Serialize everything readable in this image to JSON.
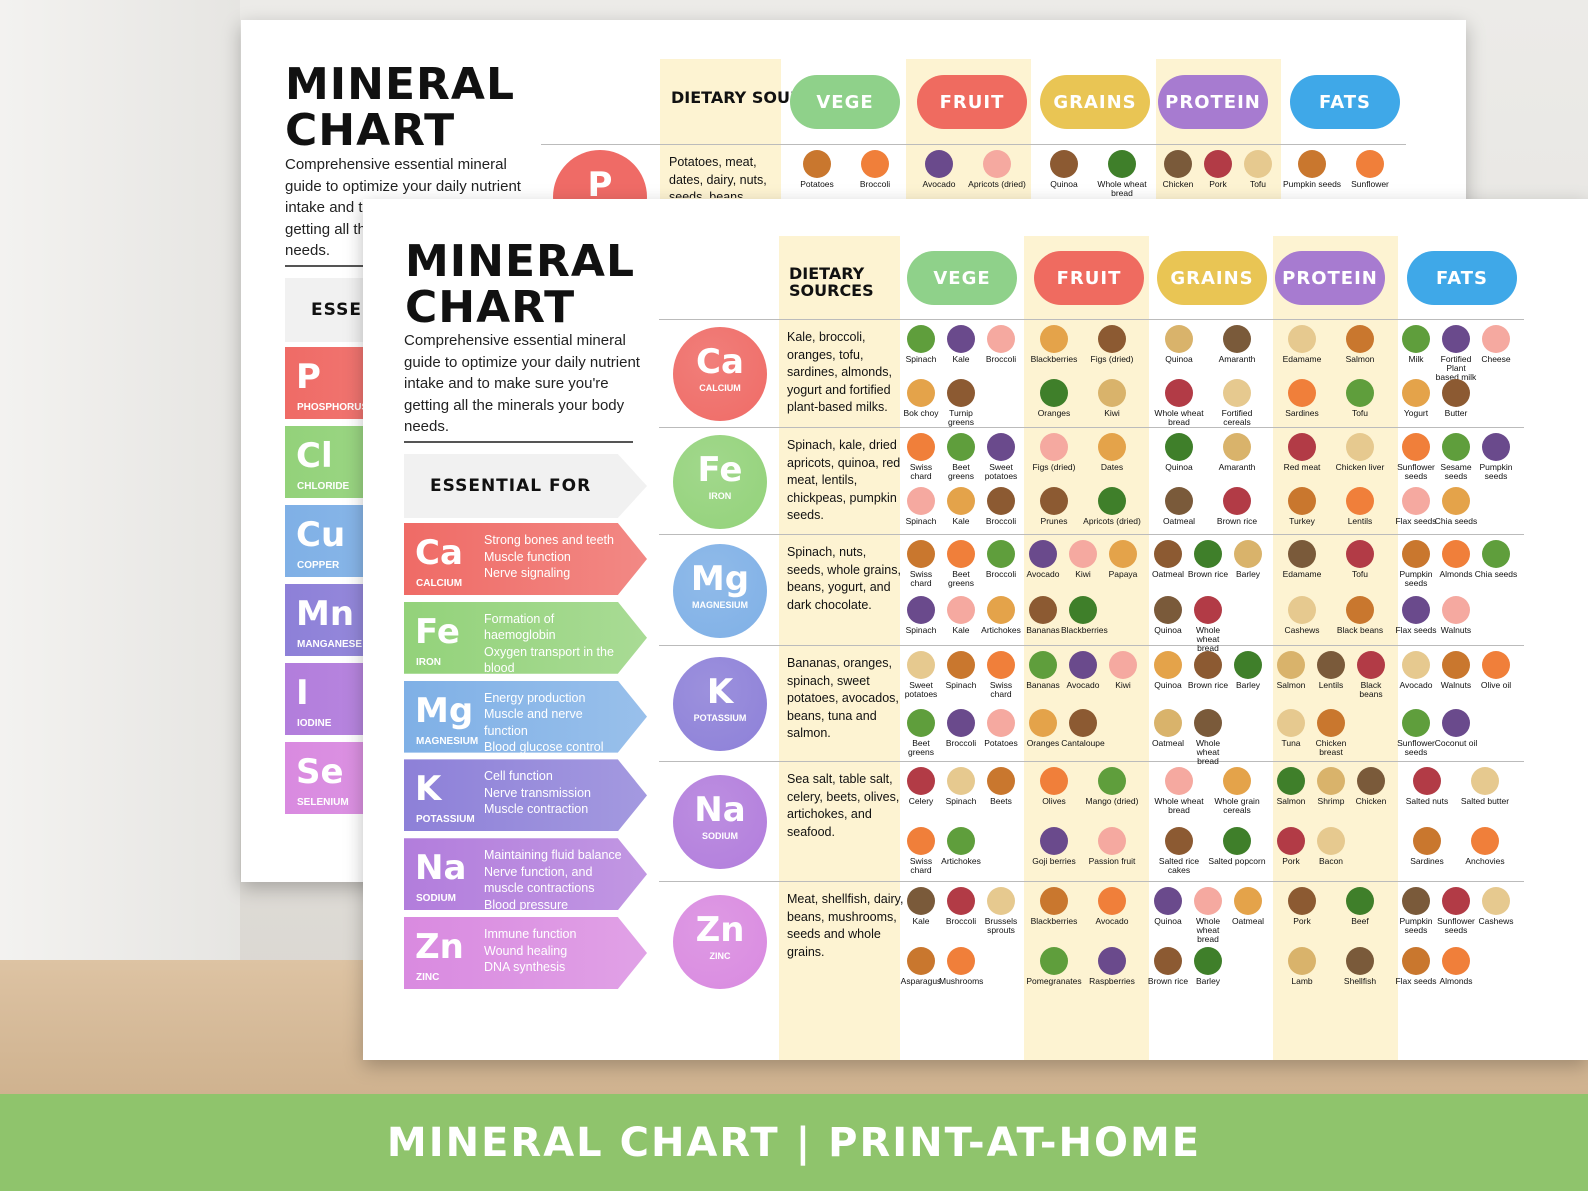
{
  "title_line1": "MINERAL",
  "title_line2": "CHART",
  "subtitle": "Comprehensive essential mineral guide to optimize your daily nutrient intake and to make sure you're getting all the minerals your body needs.",
  "essential_for": "ESSENTIAL FOR",
  "dietary_sources": "DIETARY SOURCES",
  "banner": "MINERAL CHART  |   PRINT-AT-HOME",
  "categories": [
    {
      "label": "VEGE",
      "color": "#8fd18a"
    },
    {
      "label": "FRUIT",
      "color": "#ef6b60"
    },
    {
      "label": "GRAINS",
      "color": "#e9c554"
    },
    {
      "label": "PROTEIN",
      "color": "#a77bd0"
    },
    {
      "label": "FATS",
      "color": "#3fa8e8"
    }
  ],
  "minerals": [
    {
      "symbol": "Ca",
      "name": "CALCIUM",
      "color": "#ef6b66",
      "benefits": [
        "Strong bones and teeth",
        "Muscle function",
        "Nerve signaling"
      ],
      "sources": "Kale, broccoli, oranges, tofu, sardines, almonds, yogurt and fortified plant-based milks.",
      "foods": [
        [
          "Spinach",
          "Kale",
          "Broccoli",
          "Bok choy",
          "Turnip greens"
        ],
        [
          "Blackberries",
          "Figs (dried)",
          "Oranges",
          "Kiwi"
        ],
        [
          "Quinoa",
          "Amaranth",
          "Whole wheat bread",
          "Fortified cereals"
        ],
        [
          "Edamame",
          "Salmon",
          "Sardines",
          "Tofu"
        ],
        [
          "Milk",
          "Fortified Plant based milk",
          "Cheese",
          "Yogurt",
          "Butter"
        ]
      ]
    },
    {
      "symbol": "Fe",
      "name": "IRON",
      "color": "#93d27a",
      "benefits": [
        "Formation of",
        "haemoglobin",
        "Oxygen transport in the",
        "blood"
      ],
      "sources": "Spinach, kale, dried apricots, quinoa, red meat, lentils, chickpeas, pumpkin seeds.",
      "foods": [
        [
          "Swiss chard",
          "Beet greens",
          "Sweet potatoes",
          "Spinach",
          "Kale",
          "Broccoli"
        ],
        [
          "Figs (dried)",
          "Dates",
          "Prunes",
          "Apricots (dried)"
        ],
        [
          "Quinoa",
          "Amaranth",
          "Oatmeal",
          "Brown rice"
        ],
        [
          "Red meat",
          "Chicken liver",
          "Turkey",
          "Lentils"
        ],
        [
          "Sunflower seeds",
          "Sesame seeds",
          "Pumpkin seeds",
          "Flax seeds",
          "Chia seeds"
        ]
      ]
    },
    {
      "symbol": "Mg",
      "name": "MAGNESIUM",
      "color": "#7fb0e6",
      "benefits": [
        "Energy production",
        "Muscle and nerve",
        "function",
        "Blood glucose control"
      ],
      "sources": "Spinach, nuts, seeds, whole grains, beans, yogurt, and dark chocolate.",
      "foods": [
        [
          "Swiss chard",
          "Beet greens",
          "Broccoli",
          "Spinach",
          "Kale",
          "Artichokes"
        ],
        [
          "Avocado",
          "Kiwi",
          "Papaya",
          "Bananas",
          "Blackberries"
        ],
        [
          "Oatmeal",
          "Brown rice",
          "Barley",
          "Quinoa",
          "Whole wheat bread"
        ],
        [
          "Edamame",
          "Tofu",
          "Cashews",
          "Black beans"
        ],
        [
          "Pumpkin seeds",
          "Almonds",
          "Chia seeds",
          "Flax seeds",
          "Walnuts"
        ]
      ]
    },
    {
      "symbol": "K",
      "name": "POTASSIUM",
      "color": "#8d80d8",
      "benefits": [
        "Cell function",
        "Nerve transmission",
        "Muscle contraction"
      ],
      "sources": "Bananas, oranges, spinach, sweet potatoes, avocados, beans, tuna and salmon.",
      "foods": [
        [
          "Sweet potatoes",
          "Spinach",
          "Swiss chard",
          "Beet greens",
          "Broccoli",
          "Potatoes"
        ],
        [
          "Bananas",
          "Avocado",
          "Kiwi",
          "Oranges",
          "Cantaloupe"
        ],
        [
          "Quinoa",
          "Brown rice",
          "Barley",
          "Oatmeal",
          "Whole wheat bread"
        ],
        [
          "Salmon",
          "Lentils",
          "Black beans",
          "Tuna",
          "Chicken breast"
        ],
        [
          "Avocado",
          "Walnuts",
          "Olive oil",
          "Sunflower seeds",
          "Coconut oil"
        ]
      ]
    },
    {
      "symbol": "Na",
      "name": "SODIUM",
      "color": "#b27ddc",
      "benefits": [
        "Maintaining fluid balance",
        "Nerve function, and",
        "muscle contractions",
        "Blood pressure"
      ],
      "sources": "Sea salt, table salt, celery, beets, olives, artichokes, and seafood.",
      "foods": [
        [
          "Celery",
          "Spinach",
          "Beets",
          "Swiss chard",
          "Artichokes"
        ],
        [
          "Olives",
          "Mango (dried)",
          "Goji berries",
          "Passion fruit"
        ],
        [
          "Whole wheat bread",
          "Whole grain cereals",
          "Salted rice cakes",
          "Salted popcorn"
        ],
        [
          "Salmon",
          "Shrimp",
          "Chicken",
          "Pork",
          "Bacon"
        ],
        [
          "Salted nuts",
          "Salted butter",
          "Sardines",
          "Anchovies"
        ]
      ]
    },
    {
      "symbol": "Zn",
      "name": "ZINC",
      "color": "#d98ae0",
      "benefits": [
        "Immune function",
        "Wound healing",
        "DNA synthesis"
      ],
      "sources": "Meat, shellfish, dairy, beans, mushrooms, seeds and whole grains.",
      "foods": [
        [
          "Kale",
          "Broccoli",
          "Brussels sprouts",
          "Asparagus",
          "Mushrooms"
        ],
        [
          "Blackberries",
          "Avocado",
          "Pomegranates",
          "Raspberries"
        ],
        [
          "Quinoa",
          "Whole wheat bread",
          "Oatmeal",
          "Brown rice",
          "Barley"
        ],
        [
          "Pork",
          "Beef",
          "Lamb",
          "Shellfish"
        ],
        [
          "Pumpkin seeds",
          "Sunflower seeds",
          "Cashews",
          "Flax seeds",
          "Almonds"
        ]
      ]
    }
  ],
  "back_sheet": {
    "arrows": [
      {
        "symbol": "P",
        "name": "PHOSPHORUS",
        "color": "#ef6b66"
      },
      {
        "symbol": "Cl",
        "name": "CHLORIDE",
        "color": "#93d27a"
      },
      {
        "symbol": "Cu",
        "name": "COPPER",
        "color": "#7fb0e6"
      },
      {
        "symbol": "Mn",
        "name": "MANGANESE",
        "color": "#8d80d8"
      },
      {
        "symbol": "I",
        "name": "IODINE",
        "color": "#b27ddc"
      },
      {
        "symbol": "Se",
        "name": "SELENIUM",
        "color": "#d98ae0"
      }
    ],
    "first_row": {
      "symbol": "P",
      "color": "#ef6b66",
      "sources": "Potatoes, meat, dates, dairy, nuts, seeds, beans",
      "foods": [
        [
          "Potatoes",
          "Broccoli"
        ],
        [
          "Avocado",
          "Apricots (dried)"
        ],
        [
          "Quinoa",
          "Whole wheat bread"
        ],
        [
          "Chicken",
          "Pork",
          "Tofu"
        ],
        [
          "Pumpkin seeds",
          "Sunflower"
        ]
      ]
    },
    "essential_truncated": "ESSENTIAL FOR"
  }
}
